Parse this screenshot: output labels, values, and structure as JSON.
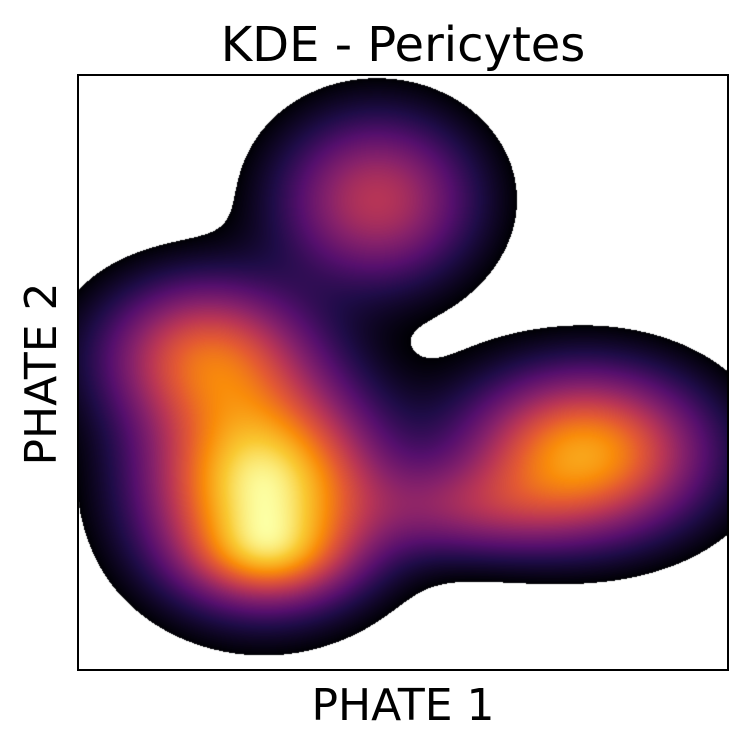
{
  "chart_data": {
    "type": "heatmap",
    "title": "KDE - Pericytes",
    "xlabel": "PHATE 1",
    "ylabel": "PHATE 2",
    "x_ticks": [],
    "y_ticks": [],
    "colormap": "inferno",
    "background": "#ffffff",
    "density_threshold": 0.045,
    "xlim": [
      0,
      1
    ],
    "ylim": [
      0,
      1
    ],
    "grid": false,
    "legend": "none",
    "components": [
      {
        "x": 0.285,
        "y": 0.31,
        "weight": 1.0,
        "sx": 0.115,
        "sy": 0.115
      },
      {
        "x": 0.295,
        "y": 0.19,
        "weight": 0.35,
        "sx": 0.08,
        "sy": 0.05
      },
      {
        "x": 0.195,
        "y": 0.53,
        "weight": 0.58,
        "sx": 0.105,
        "sy": 0.085
      },
      {
        "x": 0.78,
        "y": 0.365,
        "weight": 0.8,
        "sx": 0.12,
        "sy": 0.09
      },
      {
        "x": 0.6,
        "y": 0.27,
        "weight": 0.28,
        "sx": 0.115,
        "sy": 0.055
      },
      {
        "x": 0.46,
        "y": 0.79,
        "weight": 0.48,
        "sx": 0.1,
        "sy": 0.095
      }
    ]
  }
}
